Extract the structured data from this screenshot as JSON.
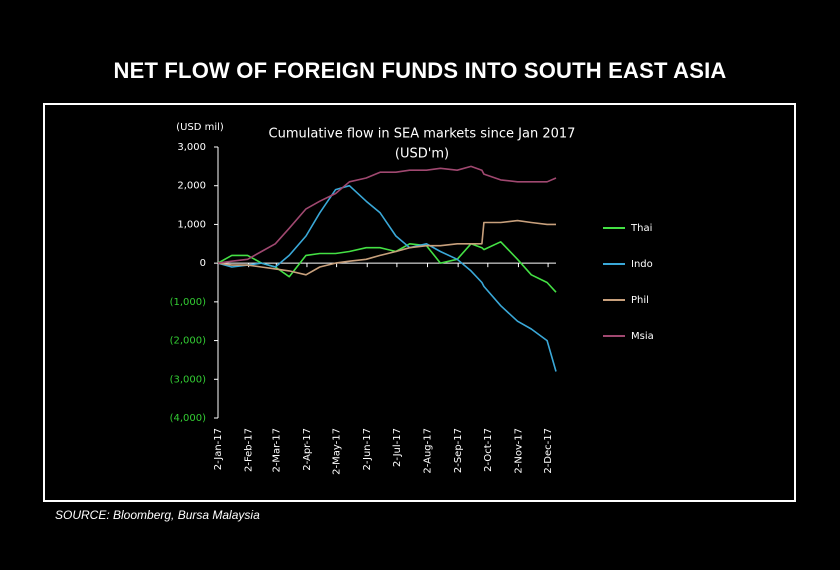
{
  "title": "NET FLOW OF FOREIGN FUNDS INTO SOUTH EAST ASIA",
  "source": "SOURCE: Bloomberg, Bursa Malaysia",
  "chart_data": {
    "type": "line",
    "title": "Cumulative flow in SEA markets since Jan 2017",
    "subtitle": "(USD'm)",
    "y_label": "(USD mil)",
    "x": [
      "2017-01-02",
      "2017-01-16",
      "2017-02-01",
      "2017-02-15",
      "2017-03-01",
      "2017-03-15",
      "2017-04-01",
      "2017-04-15",
      "2017-05-01",
      "2017-05-15",
      "2017-06-01",
      "2017-06-15",
      "2017-07-01",
      "2017-07-15",
      "2017-08-01",
      "2017-08-15",
      "2017-09-01",
      "2017-09-15",
      "2017-09-26",
      "2017-09-28",
      "2017-10-15",
      "2017-11-01",
      "2017-11-15",
      "2017-12-01",
      "2017-12-10"
    ],
    "xlim": [
      "2017-01-02",
      "2017-12-10"
    ],
    "xticks": [
      {
        "value": "2017-01-02",
        "label": "2-Jan-17"
      },
      {
        "value": "2017-02-02",
        "label": "2-Feb-17"
      },
      {
        "value": "2017-03-02",
        "label": "2-Mar-17"
      },
      {
        "value": "2017-04-02",
        "label": "2-Apr-17"
      },
      {
        "value": "2017-05-02",
        "label": "2-May-17"
      },
      {
        "value": "2017-06-02",
        "label": "2-Jun-17"
      },
      {
        "value": "2017-07-02",
        "label": "2-Jul-17"
      },
      {
        "value": "2017-08-02",
        "label": "2-Aug-17"
      },
      {
        "value": "2017-09-02",
        "label": "2-Sep-17"
      },
      {
        "value": "2017-10-02",
        "label": "2-Oct-17"
      },
      {
        "value": "2017-11-02",
        "label": "2-Nov-17"
      },
      {
        "value": "2017-12-02",
        "label": "2-Dec-17"
      }
    ],
    "ylim": [
      -4000,
      3000
    ],
    "yticks": [
      {
        "value": 3000,
        "label": "3,000"
      },
      {
        "value": 2000,
        "label": "2,000"
      },
      {
        "value": 1000,
        "label": "1,000"
      },
      0,
      {
        "value": -1000,
        "label": "(1,000)"
      },
      {
        "value": -2000,
        "label": "(2,000)"
      },
      {
        "value": -3000,
        "label": "(3,000)"
      },
      {
        "value": -4000,
        "label": "(4,000)"
      }
    ],
    "negative_tick_color": "#33cc33",
    "grid": false,
    "legend": "right",
    "series": [
      {
        "name": "Thai",
        "color": "#44e044",
        "values": [
          0,
          200,
          200,
          0,
          -100,
          -350,
          200,
          250,
          250,
          300,
          400,
          400,
          300,
          500,
          450,
          0,
          100,
          500,
          400,
          350,
          550,
          100,
          -300,
          -500,
          -750
        ]
      },
      {
        "name": "Indo",
        "color": "#3aa8d8",
        "values": [
          0,
          -100,
          -50,
          0,
          -100,
          200,
          700,
          1300,
          1900,
          2000,
          1600,
          1300,
          700,
          400,
          500,
          300,
          100,
          -200,
          -500,
          -600,
          -1100,
          -1500,
          -1700,
          -2000,
          -2800
        ]
      },
      {
        "name": "Phil",
        "color": "#c8a07c",
        "values": [
          0,
          -50,
          -50,
          -100,
          -150,
          -200,
          -300,
          -100,
          0,
          50,
          100,
          200,
          300,
          400,
          450,
          450,
          500,
          500,
          500,
          1050,
          1050,
          1100,
          1050,
          1000,
          1000
        ]
      },
      {
        "name": "Msia",
        "color": "#a04870",
        "values": [
          0,
          50,
          100,
          300,
          500,
          900,
          1400,
          1600,
          1800,
          2100,
          2200,
          2350,
          2350,
          2400,
          2400,
          2450,
          2400,
          2500,
          2400,
          2300,
          2150,
          2100,
          2100,
          2100,
          2200
        ]
      }
    ]
  }
}
